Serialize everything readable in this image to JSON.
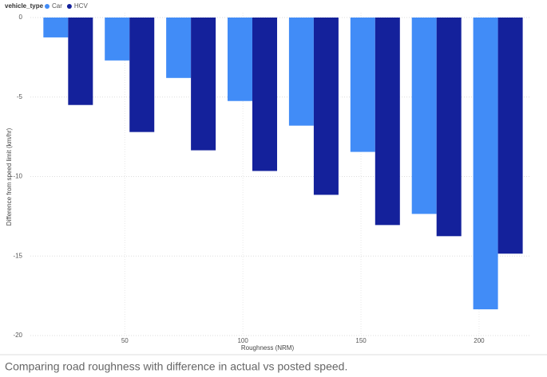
{
  "chart_data": {
    "type": "bar",
    "legend_title": "vehicle_type",
    "x_label": "Roughness (NRM)",
    "y_label": "Difference from speed limit (km/hr)",
    "caption": "Comparing road roughness with difference in actual vs posted speed.",
    "x": [
      26,
      52,
      78,
      104,
      130,
      156,
      182,
      208
    ],
    "series": [
      {
        "name": "Car",
        "color": "#418cf7",
        "values": [
          -1.25,
          -2.7,
          -3.8,
          -5.25,
          -6.8,
          -8.45,
          -12.35,
          -18.35
        ]
      },
      {
        "name": "HCV",
        "color": "#14219b",
        "values": [
          -5.5,
          -7.2,
          -8.35,
          -9.65,
          -11.15,
          -13.05,
          -13.75,
          -14.85
        ]
      }
    ],
    "xlim": [
      10,
      222
    ],
    "xticks": [
      50,
      100,
      150,
      200
    ],
    "ylim": [
      -20,
      0
    ],
    "yticks": [
      0,
      -5,
      -10,
      -15,
      -20
    ],
    "grid": true,
    "legend": "top-left"
  }
}
